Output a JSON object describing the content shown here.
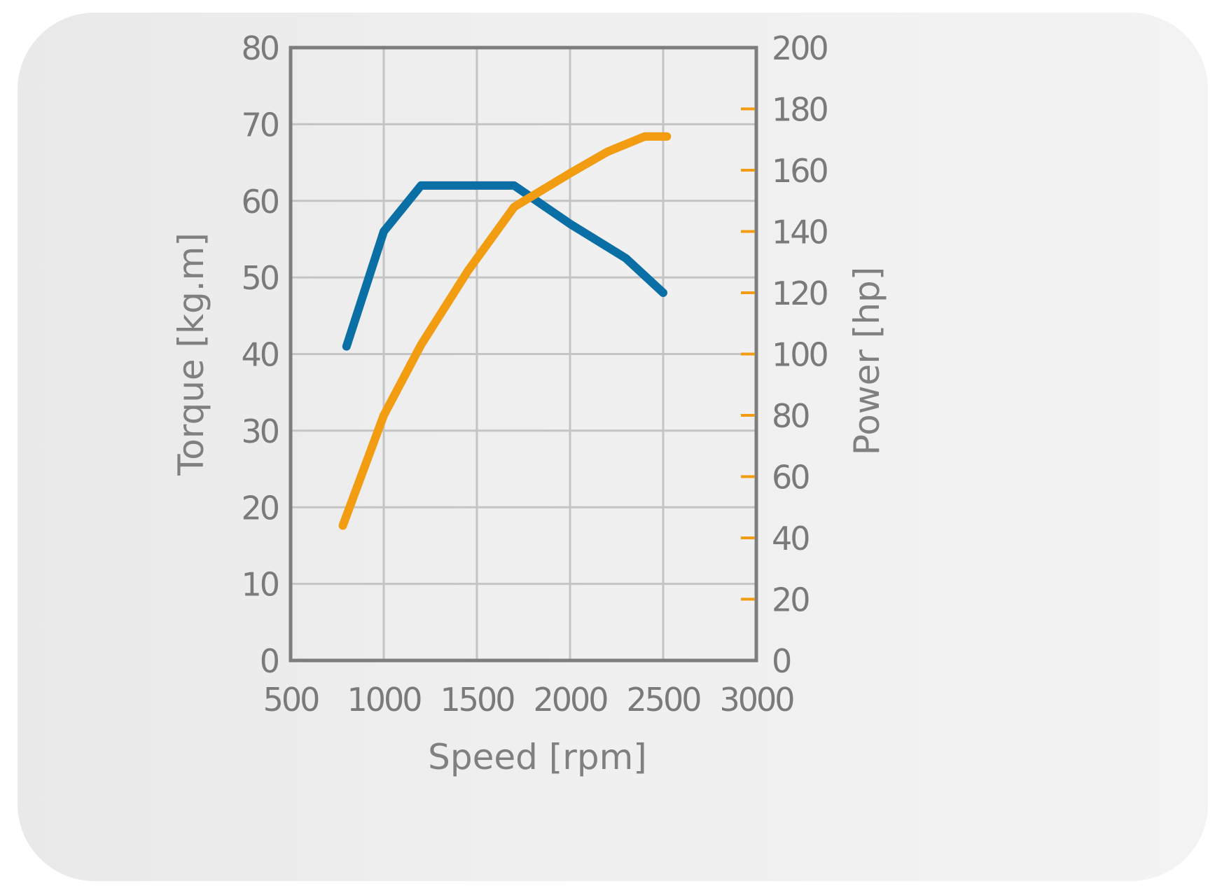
{
  "chart_data": {
    "type": "line",
    "title": "",
    "xlabel": "Speed [rpm]",
    "ylabel": "Torque [kg.m]",
    "y2label": "Power [hp]",
    "xlim": [
      500,
      3000
    ],
    "ylim": [
      0,
      80
    ],
    "y2lim": [
      0,
      200
    ],
    "x_ticks": [
      "500",
      "1000",
      "1500",
      "2000",
      "2500",
      "3000"
    ],
    "y_ticks": [
      "0",
      "10",
      "20",
      "30",
      "40",
      "50",
      "60",
      "70",
      "80"
    ],
    "y2_ticks": [
      "0",
      "20",
      "40",
      "60",
      "80",
      "100",
      "120",
      "140",
      "160",
      "180",
      "200"
    ],
    "grid": true,
    "series": [
      {
        "axis": "left",
        "color": "#0a6fa5",
        "x": [
          800,
          1000,
          1200,
          1700,
          2000,
          2300,
          2500
        ],
        "y": [
          41,
          56,
          62,
          62,
          57,
          52.5,
          48
        ]
      },
      {
        "axis": "right",
        "color": "#f29c12",
        "x": [
          780,
          1000,
          1200,
          1450,
          1700,
          2000,
          2200,
          2400,
          2520
        ],
        "y": [
          44,
          80,
          103,
          127,
          148,
          159,
          166,
          171,
          171
        ]
      }
    ]
  }
}
